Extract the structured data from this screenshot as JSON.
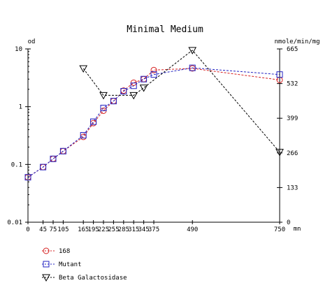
{
  "chart_data": {
    "type": "line",
    "title": "Minimal Medium",
    "left_axis_label": "od",
    "right_axis_label": "nmole/min/mg",
    "x_unit_label": "mn",
    "x": {
      "range": [
        0,
        750
      ],
      "ticks": [
        0,
        45,
        75,
        105,
        165,
        195,
        225,
        255,
        285,
        315,
        345,
        375,
        490,
        750
      ],
      "tick_labels": [
        "0",
        "45",
        "75",
        "105",
        "165",
        "195",
        "225",
        "255",
        "285",
        "315",
        "345",
        "375",
        "490",
        "750"
      ]
    },
    "y_left": {
      "scale": "log",
      "range": [
        0.01,
        10
      ],
      "ticks": [
        0.01,
        0.1,
        1,
        10
      ],
      "tick_labels": [
        "0.01",
        "0.1",
        "1",
        "10"
      ]
    },
    "y_right": {
      "scale": "linear",
      "range": [
        0,
        665
      ],
      "ticks": [
        0,
        133,
        266,
        399,
        532,
        665
      ],
      "tick_labels": [
        "0",
        "133",
        "266",
        "399",
        "532",
        "665"
      ]
    },
    "series": [
      {
        "name": "168",
        "axis": "left",
        "marker": "circle",
        "color": "#d62020",
        "points": [
          [
            0,
            0.06
          ],
          [
            45,
            0.09
          ],
          [
            75,
            0.125
          ],
          [
            105,
            0.17
          ],
          [
            165,
            0.3
          ],
          [
            195,
            0.52
          ],
          [
            225,
            0.85
          ],
          [
            255,
            1.25
          ],
          [
            285,
            1.9
          ],
          [
            315,
            2.6
          ],
          [
            345,
            3.0
          ],
          [
            375,
            4.3
          ],
          [
            490,
            4.6
          ],
          [
            750,
            2.9
          ]
        ]
      },
      {
        "name": "Mutant",
        "axis": "left",
        "marker": "square",
        "color": "#2020c0",
        "points": [
          [
            0,
            0.06
          ],
          [
            45,
            0.09
          ],
          [
            75,
            0.125
          ],
          [
            105,
            0.17
          ],
          [
            165,
            0.32
          ],
          [
            195,
            0.55
          ],
          [
            225,
            0.95
          ],
          [
            255,
            1.25
          ],
          [
            285,
            1.85
          ],
          [
            315,
            2.3
          ],
          [
            345,
            3.0
          ],
          [
            375,
            3.6
          ],
          [
            490,
            4.7
          ],
          [
            750,
            3.6
          ]
        ]
      },
      {
        "name": "Beta Galactosidase",
        "axis": "right",
        "marker": "triangle-down",
        "color": "#000000",
        "points": [
          [
            165,
            590
          ],
          [
            225,
            487
          ],
          [
            315,
            487
          ],
          [
            345,
            516
          ],
          [
            490,
            660
          ],
          [
            750,
            269
          ]
        ]
      }
    ],
    "legend_position": "bottom-left"
  }
}
